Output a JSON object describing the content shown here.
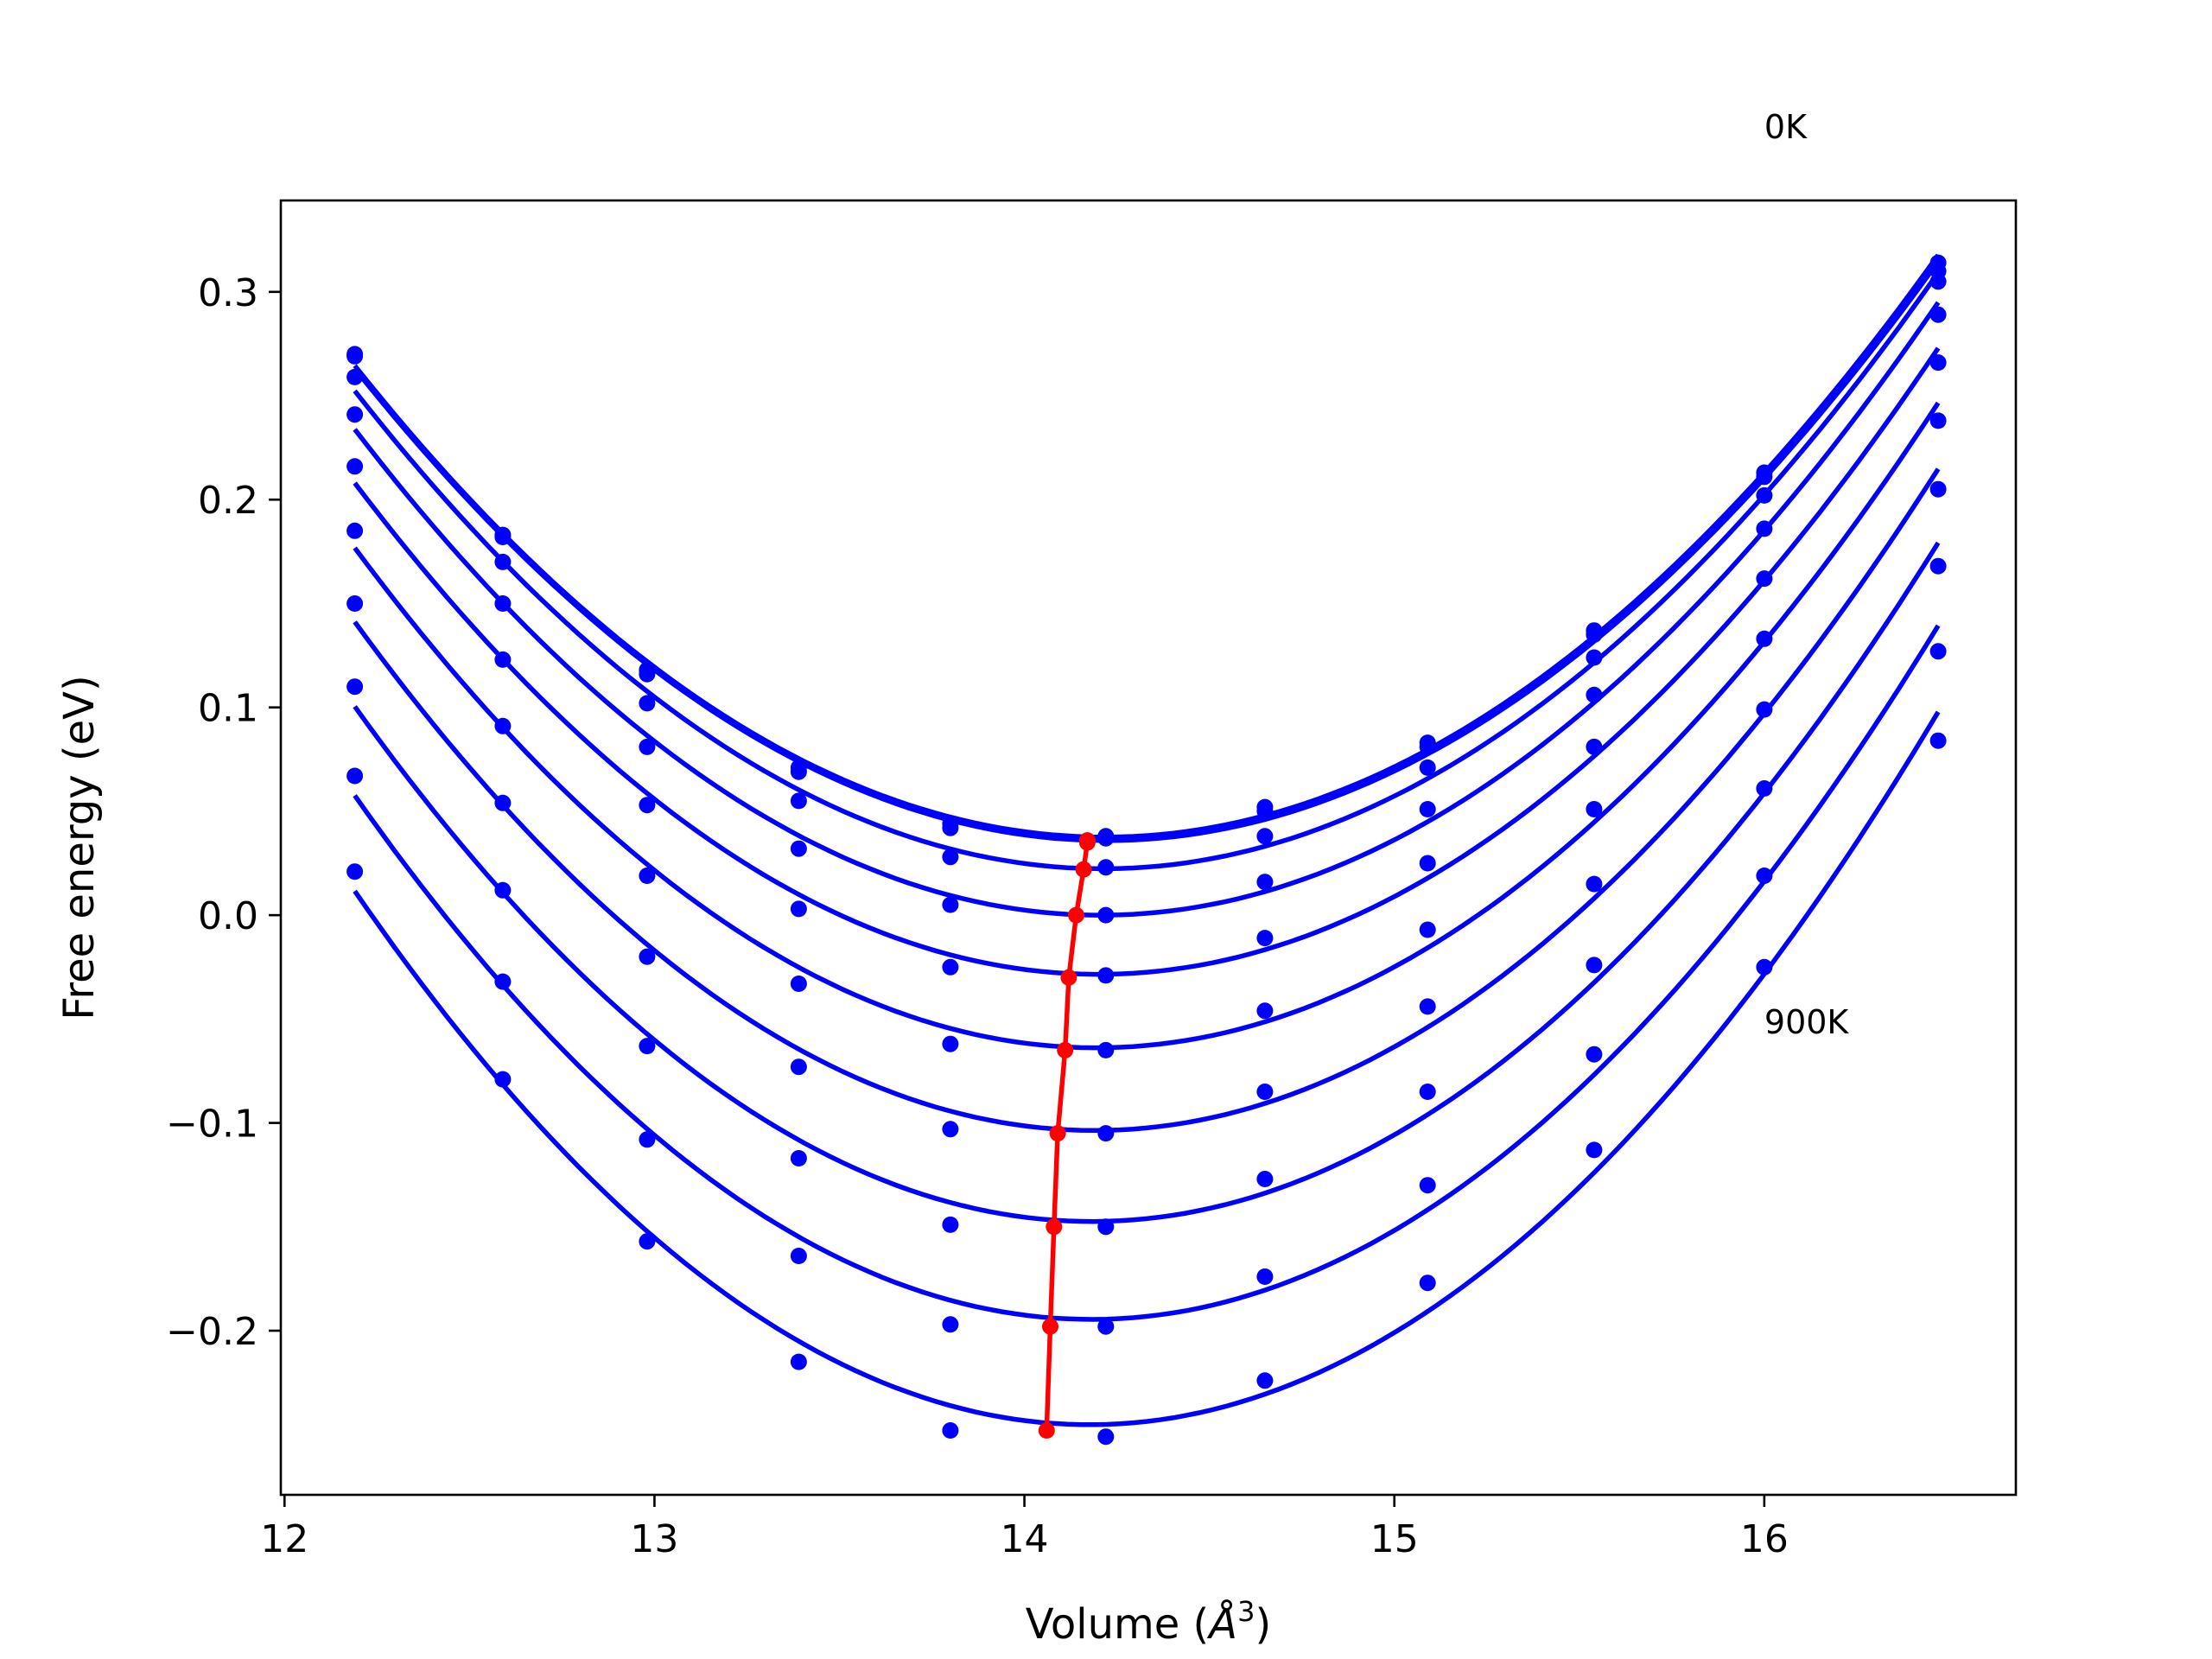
{
  "chart_data": {
    "type": "line",
    "title": "",
    "xlabel": "Volume",
    "xlabel_unit_symbol": "Å",
    "xlabel_unit_exp": "3",
    "ylabel": "Free energy (eV)",
    "xlim": [
      11.99,
      16.68
    ],
    "ylim": [
      -0.279,
      0.344
    ],
    "xticks": [
      12,
      13,
      14,
      15,
      16
    ],
    "xtick_labels": [
      "12",
      "13",
      "14",
      "15",
      "16"
    ],
    "yticks": [
      -0.2,
      -0.1,
      0.0,
      0.1,
      0.2,
      0.3
    ],
    "ytick_labels": [
      "−0.2",
      "−0.1",
      "0.0",
      "0.1",
      "0.2",
      "0.3"
    ],
    "grid": false,
    "annotations": [
      {
        "text": "0K",
        "x": 16.0,
        "y": 0.374
      },
      {
        "text": "900K",
        "x": 16.0,
        "y": -0.057
      }
    ],
    "x": [
      12.19,
      12.59,
      12.98,
      13.39,
      13.8,
      14.22,
      14.65,
      15.09,
      15.54,
      16.0,
      16.47
    ],
    "series": [
      {
        "color": "#0000ff",
        "curve_min_x": 14.17,
        "values": [
          0.27,
          0.183,
          0.118,
          0.071,
          0.044,
          0.038,
          0.052,
          0.083,
          0.137,
          0.213,
          0.314
        ]
      },
      {
        "color": "#0000ff",
        "curve_min_x": 14.17,
        "values": [
          0.269,
          0.182,
          0.116,
          0.069,
          0.042,
          0.037,
          0.05,
          0.081,
          0.135,
          0.211,
          0.31
        ]
      },
      {
        "color": "#0000ff",
        "curve_min_x": 14.16,
        "values": [
          0.259,
          0.17,
          0.102,
          0.055,
          0.028,
          0.023,
          0.038,
          0.071,
          0.124,
          0.202,
          0.305
        ]
      },
      {
        "color": "#0000ff",
        "curve_min_x": 14.14,
        "values": [
          0.241,
          0.15,
          0.081,
          0.032,
          0.005,
          0.0,
          0.016,
          0.051,
          0.106,
          0.186,
          0.289
        ]
      },
      {
        "color": "#0000ff",
        "curve_min_x": 14.12,
        "values": [
          0.216,
          0.123,
          0.053,
          0.003,
          -0.025,
          -0.029,
          -0.011,
          0.025,
          0.081,
          0.162,
          0.266
        ]
      },
      {
        "color": "#0000ff",
        "curve_min_x": 14.11,
        "values": [
          0.185,
          0.091,
          0.019,
          -0.033,
          -0.062,
          -0.065,
          -0.046,
          -0.007,
          0.051,
          0.133,
          0.238
        ]
      },
      {
        "color": "#0000ff",
        "curve_min_x": 14.09,
        "values": [
          0.15,
          0.054,
          -0.02,
          -0.073,
          -0.103,
          -0.105,
          -0.085,
          -0.044,
          0.015,
          0.099,
          0.205
        ]
      },
      {
        "color": "#0000ff",
        "curve_min_x": 14.08,
        "values": [
          0.11,
          0.012,
          -0.063,
          -0.117,
          -0.149,
          -0.15,
          -0.127,
          -0.085,
          -0.024,
          0.061,
          0.168
        ]
      },
      {
        "color": "#0000ff",
        "curve_min_x": 14.07,
        "values": [
          0.067,
          -0.032,
          -0.108,
          -0.164,
          -0.197,
          -0.198,
          -0.174,
          -0.13,
          -0.067,
          0.019,
          0.127
        ]
      },
      {
        "color": "#0000ff",
        "curve_min_x": 14.06,
        "values": [
          0.021,
          -0.079,
          -0.157,
          -0.215,
          -0.248,
          -0.251,
          -0.224,
          -0.177,
          -0.113,
          -0.025,
          0.084
        ]
      }
    ],
    "minimum_path": {
      "color": "#ff0000",
      "x": [
        14.17,
        14.17,
        14.16,
        14.14,
        14.12,
        14.11,
        14.09,
        14.08,
        14.07,
        14.06
      ],
      "y": [
        0.036,
        0.035,
        0.022,
        0.0,
        -0.03,
        -0.065,
        -0.105,
        -0.15,
        -0.198,
        -0.248
      ]
    }
  }
}
